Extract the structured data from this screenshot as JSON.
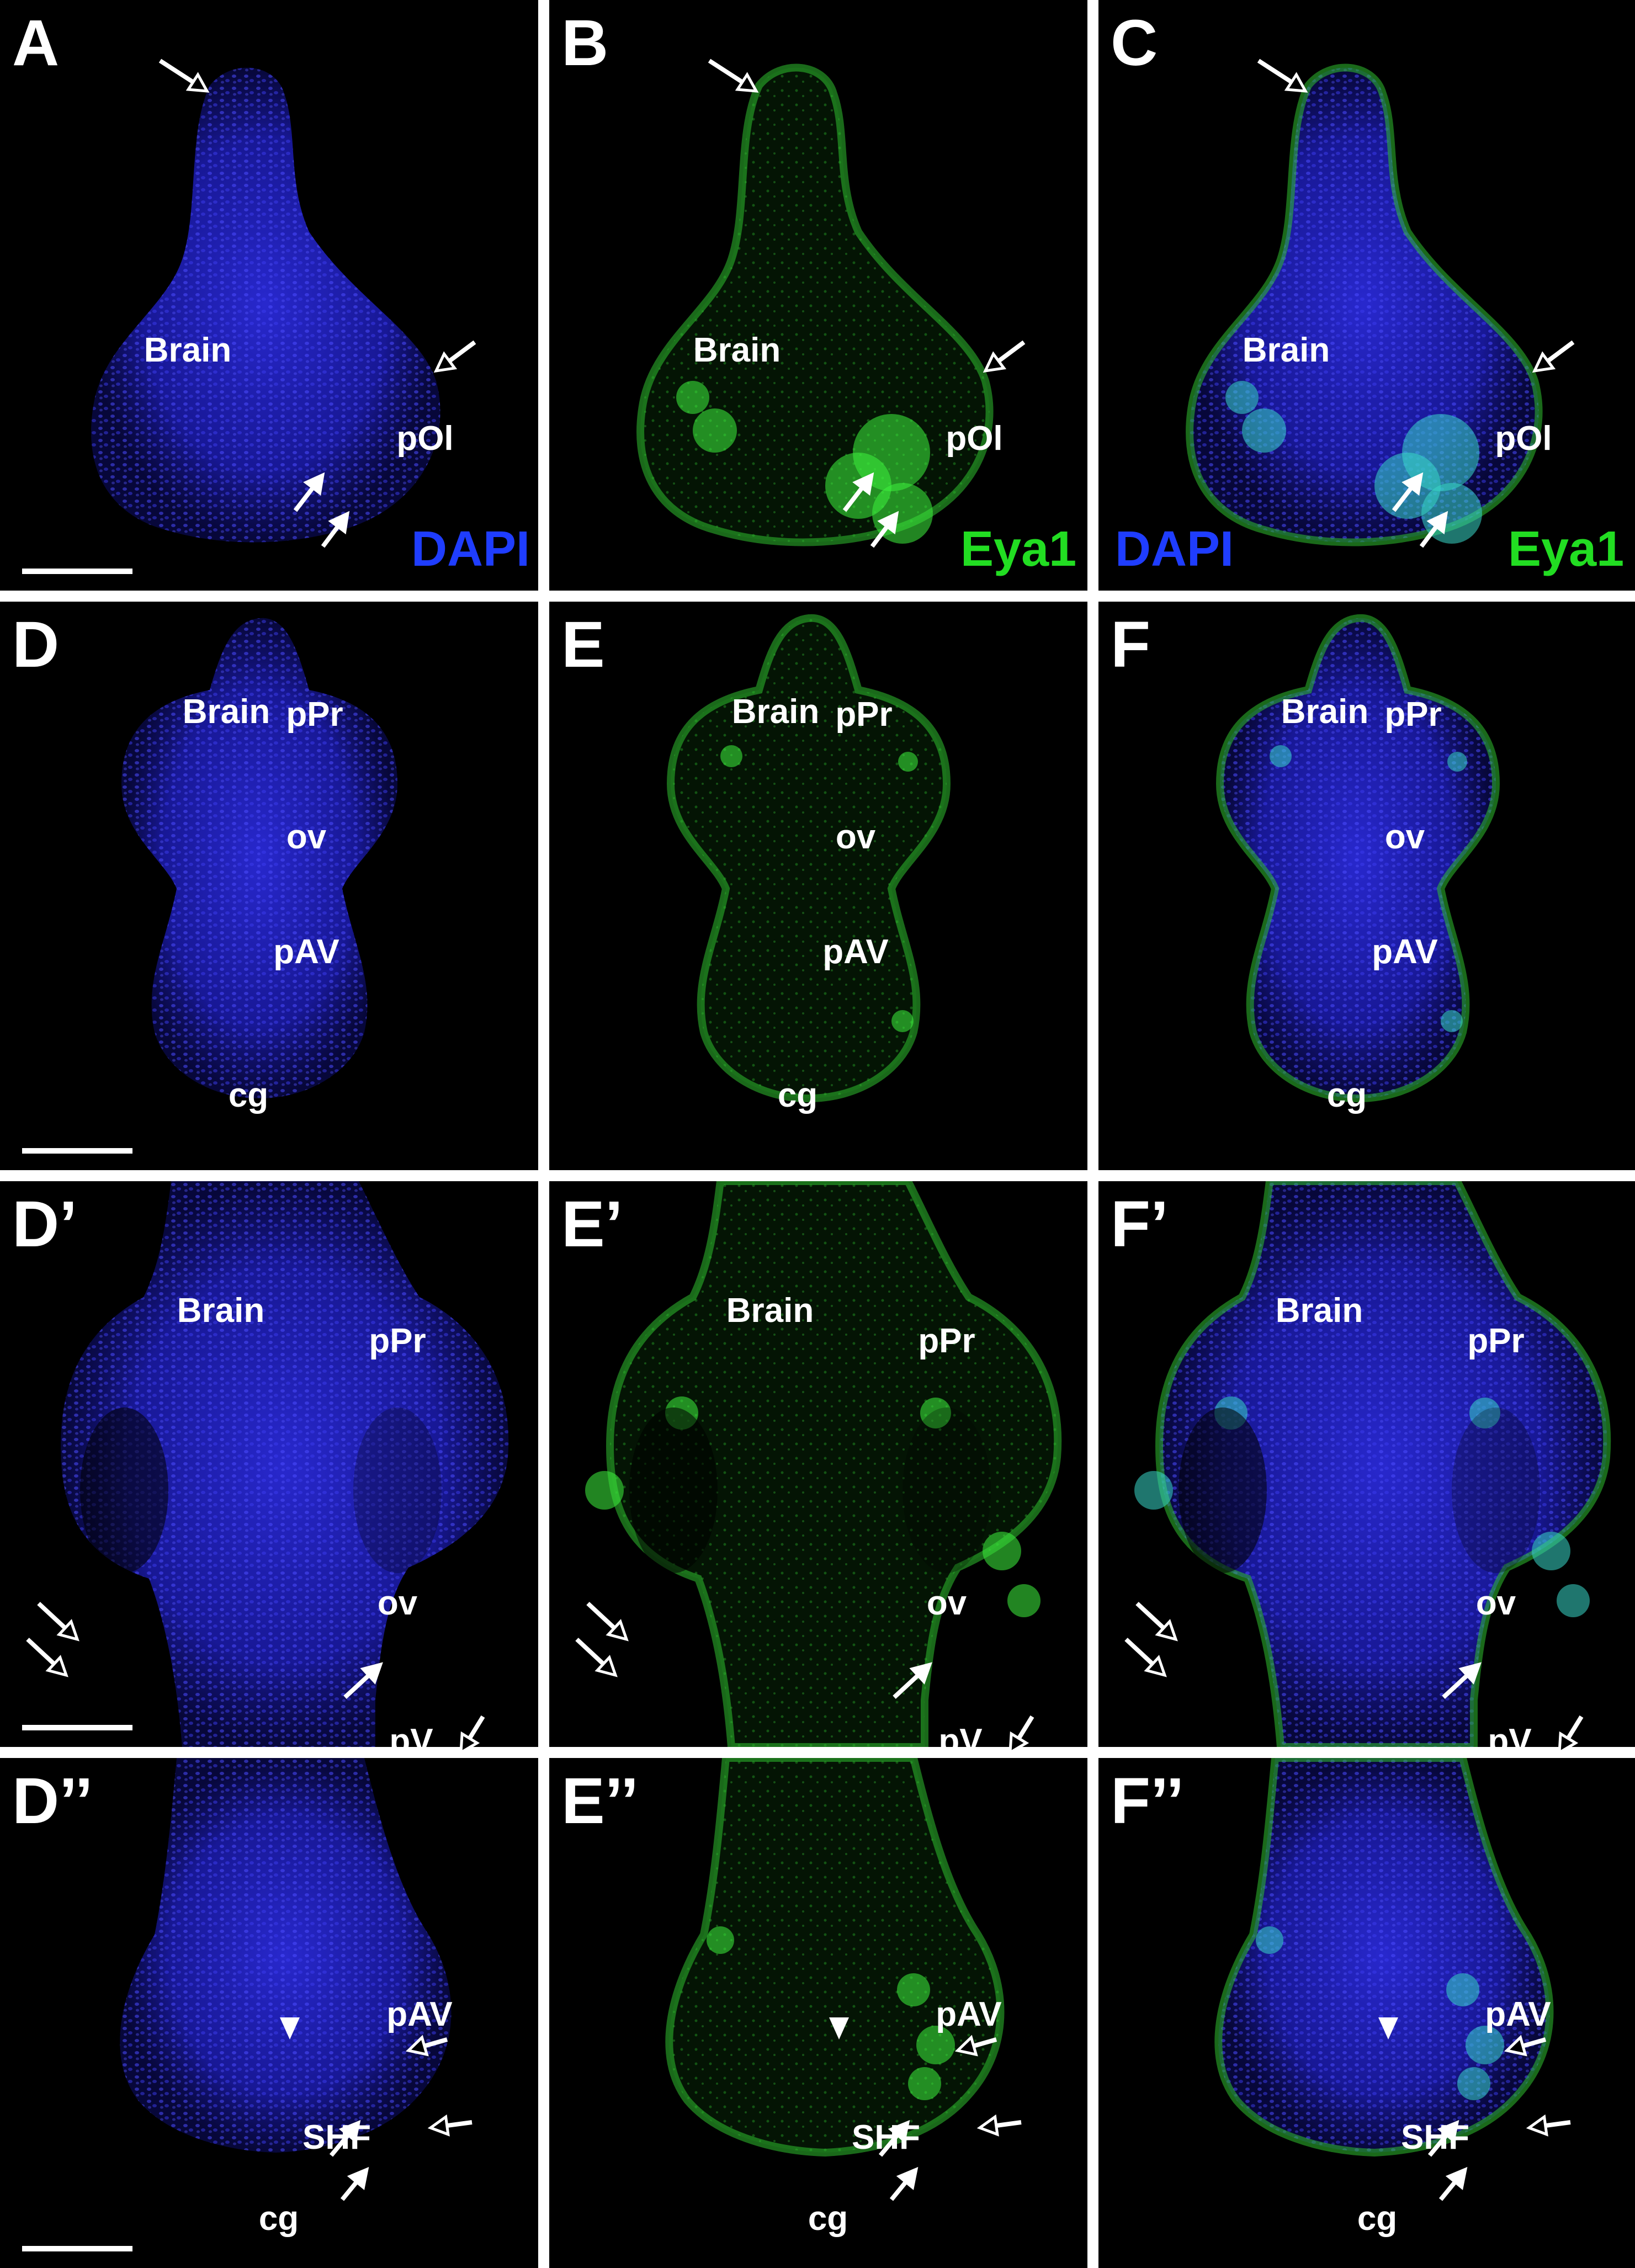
{
  "figure": {
    "panels": [
      {
        "id": "A",
        "label": "A",
        "channel": "dapi",
        "section": "head",
        "stain_labels": [
          {
            "text": "DAPI",
            "color": "#1f3dff"
          }
        ],
        "regions": [
          "Brain",
          "pOl"
        ],
        "scale_bar": true
      },
      {
        "id": "B",
        "label": "B",
        "channel": "eya1",
        "section": "head",
        "stain_labels": [
          {
            "text": "Eya1",
            "color": "#22dd22"
          }
        ],
        "regions": [
          "Brain",
          "pOl"
        ],
        "scale_bar": false
      },
      {
        "id": "C",
        "label": "C",
        "channel": "merge",
        "section": "head",
        "stain_labels": [
          {
            "text": "DAPI",
            "color": "#1f3dff"
          },
          {
            "text": "Eya1",
            "color": "#22dd22"
          }
        ],
        "regions": [
          "Brain",
          "pOl"
        ],
        "scale_bar": false
      },
      {
        "id": "D",
        "label": "D",
        "channel": "dapi",
        "section": "whole",
        "stain_labels": [],
        "regions": [
          "Brain",
          "pPr",
          "ov",
          "pAV",
          "cg"
        ],
        "scale_bar": true
      },
      {
        "id": "E",
        "label": "E",
        "channel": "eya1",
        "section": "whole",
        "stain_labels": [],
        "regions": [
          "Brain",
          "pPr",
          "ov",
          "pAV",
          "cg"
        ],
        "scale_bar": false
      },
      {
        "id": "F",
        "label": "F",
        "channel": "merge",
        "section": "whole",
        "stain_labels": [],
        "regions": [
          "Brain",
          "pPr",
          "ov",
          "pAV",
          "cg"
        ],
        "scale_bar": false
      },
      {
        "id": "D1",
        "label": "D’",
        "channel": "dapi",
        "section": "otic",
        "stain_labels": [],
        "regions": [
          "Brain",
          "pPr",
          "ov",
          "pV"
        ],
        "scale_bar": true
      },
      {
        "id": "E1",
        "label": "E’",
        "channel": "eya1",
        "section": "otic",
        "stain_labels": [],
        "regions": [
          "Brain",
          "pPr",
          "ov",
          "pV"
        ],
        "scale_bar": false
      },
      {
        "id": "F1",
        "label": "F’",
        "channel": "merge",
        "section": "otic",
        "stain_labels": [],
        "regions": [
          "Brain",
          "pPr",
          "ov",
          "pV"
        ],
        "scale_bar": false
      },
      {
        "id": "D2",
        "label": "D’’",
        "channel": "dapi",
        "section": "cardiac",
        "stain_labels": [],
        "regions": [
          "pAV",
          "SHF",
          "cg"
        ],
        "scale_bar": true
      },
      {
        "id": "E2",
        "label": "E’’",
        "channel": "eya1",
        "section": "cardiac",
        "stain_labels": [],
        "regions": [
          "pAV",
          "SHF",
          "cg"
        ],
        "scale_bar": false
      },
      {
        "id": "F2",
        "label": "F’’",
        "channel": "merge",
        "section": "cardiac",
        "stain_labels": [],
        "regions": [
          "pAV",
          "SHF",
          "cg"
        ],
        "scale_bar": false
      }
    ],
    "channel_colors": {
      "dapi": "#2a2ad0",
      "eya1": "#2fbf2f",
      "merge_overlap": "#39d7c9"
    },
    "background": "#000000",
    "text_color": "#ffffff",
    "icons": [
      "solid-arrow-icon",
      "open-arrow-icon",
      "arrowhead-icon",
      "scale-bar"
    ]
  }
}
